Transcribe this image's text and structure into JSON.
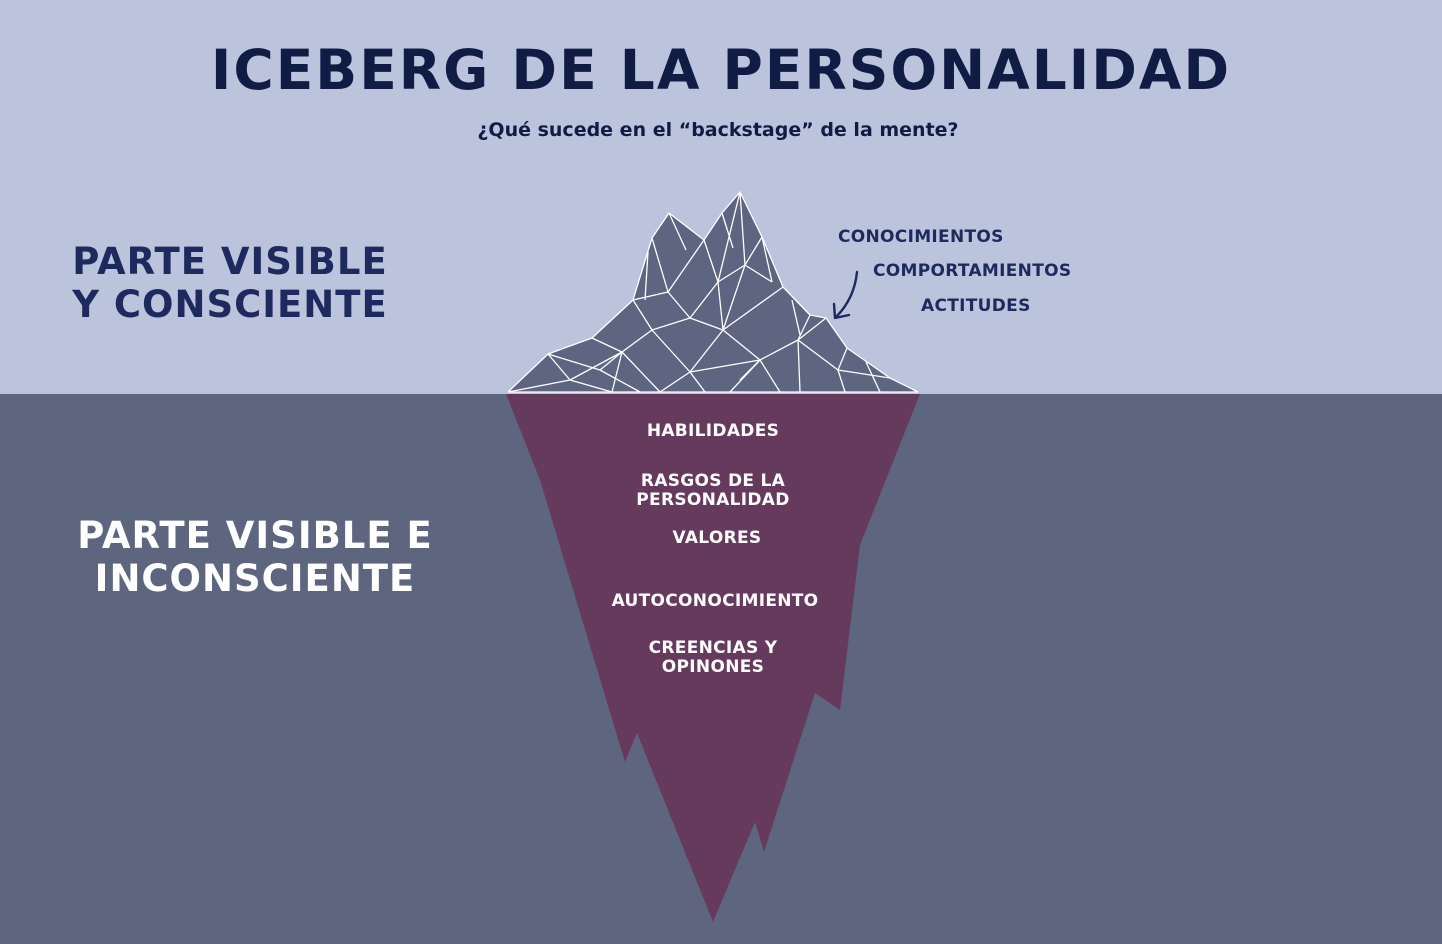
{
  "title": "ICEBERG DE LA PERSONALIDAD",
  "subtitle": "¿Qué sucede en el “backstage” de la mente?",
  "zones": {
    "above": {
      "line1": "PARTE VISIBLE",
      "line2": "Y CONSCIENTE"
    },
    "below": {
      "line1": "PARTE VISIBLE E",
      "line2": "INCONSCIENTE"
    }
  },
  "visible_traits": [
    "CONOCIMIENTOS",
    "COMPORTAMIENTOS",
    "ACTITUDES"
  ],
  "hidden_traits": [
    {
      "line1": "HABILIDADES"
    },
    {
      "line1": "RASGOS DE LA",
      "line2": "PERSONALIDAD"
    },
    {
      "line1": "VALORES"
    },
    {
      "line1": "AUTOCONOCIMIENTO"
    },
    {
      "line1": "CREENCIAS Y",
      "line2": "OPINONES"
    }
  ],
  "colors": {
    "sky": "#bcc4dd",
    "sea": "#5e667f",
    "iceberg_tip": "#5e6580",
    "iceberg_base": "#653a5c",
    "title_text": "#111c45",
    "label_text": "#1e2a5d"
  },
  "icons": {
    "pointer": "curved-arrow-icon"
  }
}
